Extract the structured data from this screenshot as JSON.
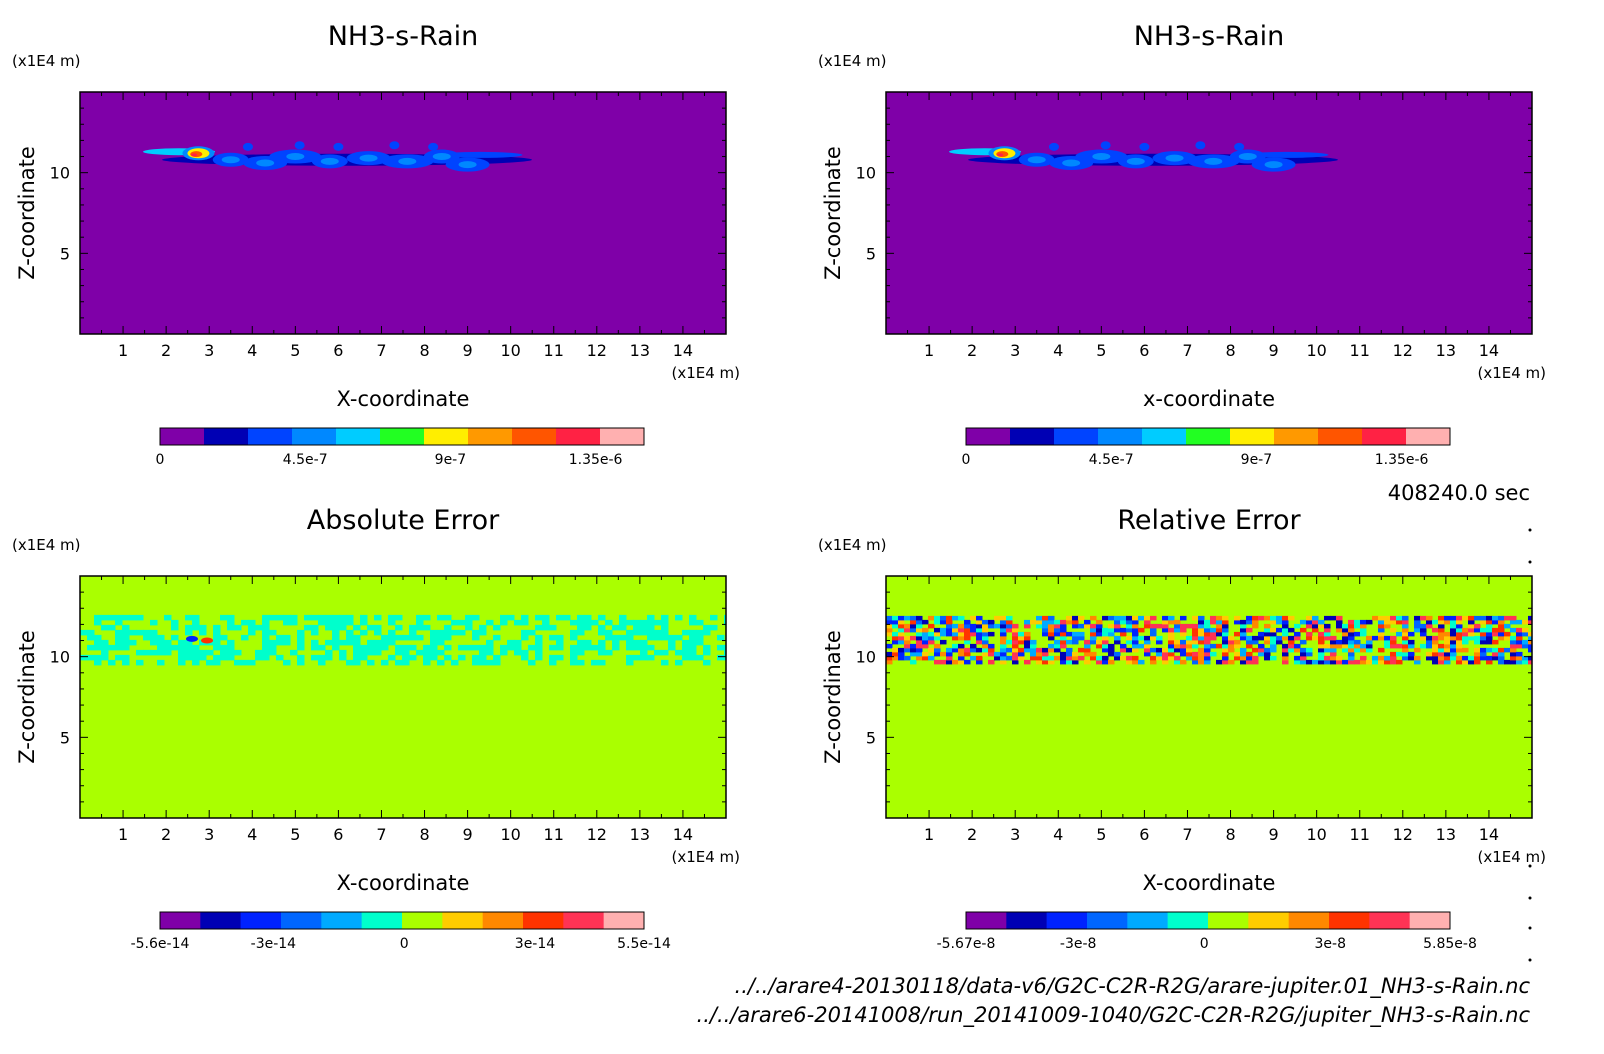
{
  "time_label": "408240.0 sec",
  "file_paths": [
    "../../arare4-20130118/data-v6/G2C-C2R-R2G/arare-jupiter.01_NH3-s-Rain.nc",
    "../../arare6-20141008/run_20141009-1040/G2C-C2R-R2G/jupiter_NH3-s-Rain.nc"
  ],
  "chart_data": [
    {
      "type": "heatmap",
      "title": "NH3-s-Rain",
      "xlabel": "X-coordinate",
      "ylabel": "Z-coordinate",
      "x_unit": "(x1E4 m)",
      "y_unit": "(x1E4 m)",
      "xlim": [
        0,
        15
      ],
      "ylim": [
        0,
        15
      ],
      "x_ticks": [
        "1",
        "2",
        "3",
        "4",
        "5",
        "6",
        "7",
        "8",
        "9",
        "10",
        "11",
        "12",
        "13",
        "14"
      ],
      "y_ticks": [
        "5",
        "10"
      ],
      "background": "#7f00a8",
      "field": "ammonia rain band near z=10-11.5, x=1.3-10.2, peak near x=2.7",
      "colorbar": {
        "labels": [
          "0",
          "4.5e-7",
          "9e-7",
          "1.35e-6"
        ],
        "min": 0,
        "max": 1.5e-06,
        "colors": [
          "#7f00a8",
          "#0000b4",
          "#0044ff",
          "#0088ff",
          "#00ccff",
          "#22ff22",
          "#ffee00",
          "#ff9900",
          "#ff5500",
          "#ff2244",
          "#ffb0b0"
        ]
      }
    },
    {
      "type": "heatmap",
      "title": "NH3-s-Rain",
      "xlabel": "x-coordinate",
      "ylabel": "Z-coordinate",
      "x_unit": "(x1E4 m)",
      "y_unit": "(x1E4 m)",
      "xlim": [
        0,
        15
      ],
      "ylim": [
        0,
        15
      ],
      "x_ticks": [
        "1",
        "2",
        "3",
        "4",
        "5",
        "6",
        "7",
        "8",
        "9",
        "10",
        "11",
        "12",
        "13",
        "14"
      ],
      "y_ticks": [
        "5",
        "10"
      ],
      "background": "#7f00a8",
      "field": "same as left panel",
      "colorbar": {
        "labels": [
          "0",
          "4.5e-7",
          "9e-7",
          "1.35e-6"
        ],
        "min": 0,
        "max": 1.5e-06,
        "colors": [
          "#7f00a8",
          "#0000b4",
          "#0044ff",
          "#0088ff",
          "#00ccff",
          "#22ff22",
          "#ffee00",
          "#ff9900",
          "#ff5500",
          "#ff2244",
          "#ffb0b0"
        ]
      }
    },
    {
      "type": "heatmap",
      "title": "Absolute Error",
      "xlabel": "X-coordinate",
      "ylabel": "Z-coordinate",
      "x_unit": "(x1E4 m)",
      "y_unit": "(x1E4 m)",
      "xlim": [
        0,
        15
      ],
      "ylim": [
        0,
        15
      ],
      "x_ticks": [
        "1",
        "2",
        "3",
        "4",
        "5",
        "6",
        "7",
        "8",
        "9",
        "10",
        "11",
        "12",
        "13",
        "14"
      ],
      "y_ticks": [
        "5",
        "10"
      ],
      "background": "#aaff00",
      "field": "cyan noise band z=9.8-12.5 across full width",
      "colorbar": {
        "labels": [
          "-5.6e-14",
          "-3e-14",
          "0",
          "3e-14",
          "5.5e-14"
        ],
        "min": -5.6e-14,
        "max": 5.5e-14,
        "colors": [
          "#7f00a8",
          "#0000b4",
          "#0022ff",
          "#0066ff",
          "#00aaff",
          "#00ffcc",
          "#aaff00",
          "#ffcc00",
          "#ff8800",
          "#ff3300",
          "#ff3355",
          "#ffb0b0"
        ]
      }
    },
    {
      "type": "heatmap",
      "title": "Relative Error",
      "xlabel": "X-coordinate",
      "ylabel": "Z-coordinate",
      "x_unit": "(x1E4 m)",
      "y_unit": "(x1E4 m)",
      "xlim": [
        0,
        15
      ],
      "ylim": [
        0,
        15
      ],
      "x_ticks": [
        "1",
        "2",
        "3",
        "4",
        "5",
        "6",
        "7",
        "8",
        "9",
        "10",
        "11",
        "12",
        "13",
        "14"
      ],
      "y_ticks": [
        "5",
        "10"
      ],
      "background": "#aaff00",
      "field": "multicolor noise band z=9.8-12.5 across full width",
      "colorbar": {
        "labels": [
          "-5.67e-8",
          "-3e-8",
          "0",
          "3e-8",
          "5.85e-8"
        ],
        "min": -5.67e-08,
        "max": 5.85e-08,
        "colors": [
          "#7f00a8",
          "#0000b4",
          "#0022ff",
          "#0066ff",
          "#00aaff",
          "#00ffcc",
          "#aaff00",
          "#ffcc00",
          "#ff8800",
          "#ff3300",
          "#ff3355",
          "#ffb0b0"
        ]
      }
    }
  ]
}
